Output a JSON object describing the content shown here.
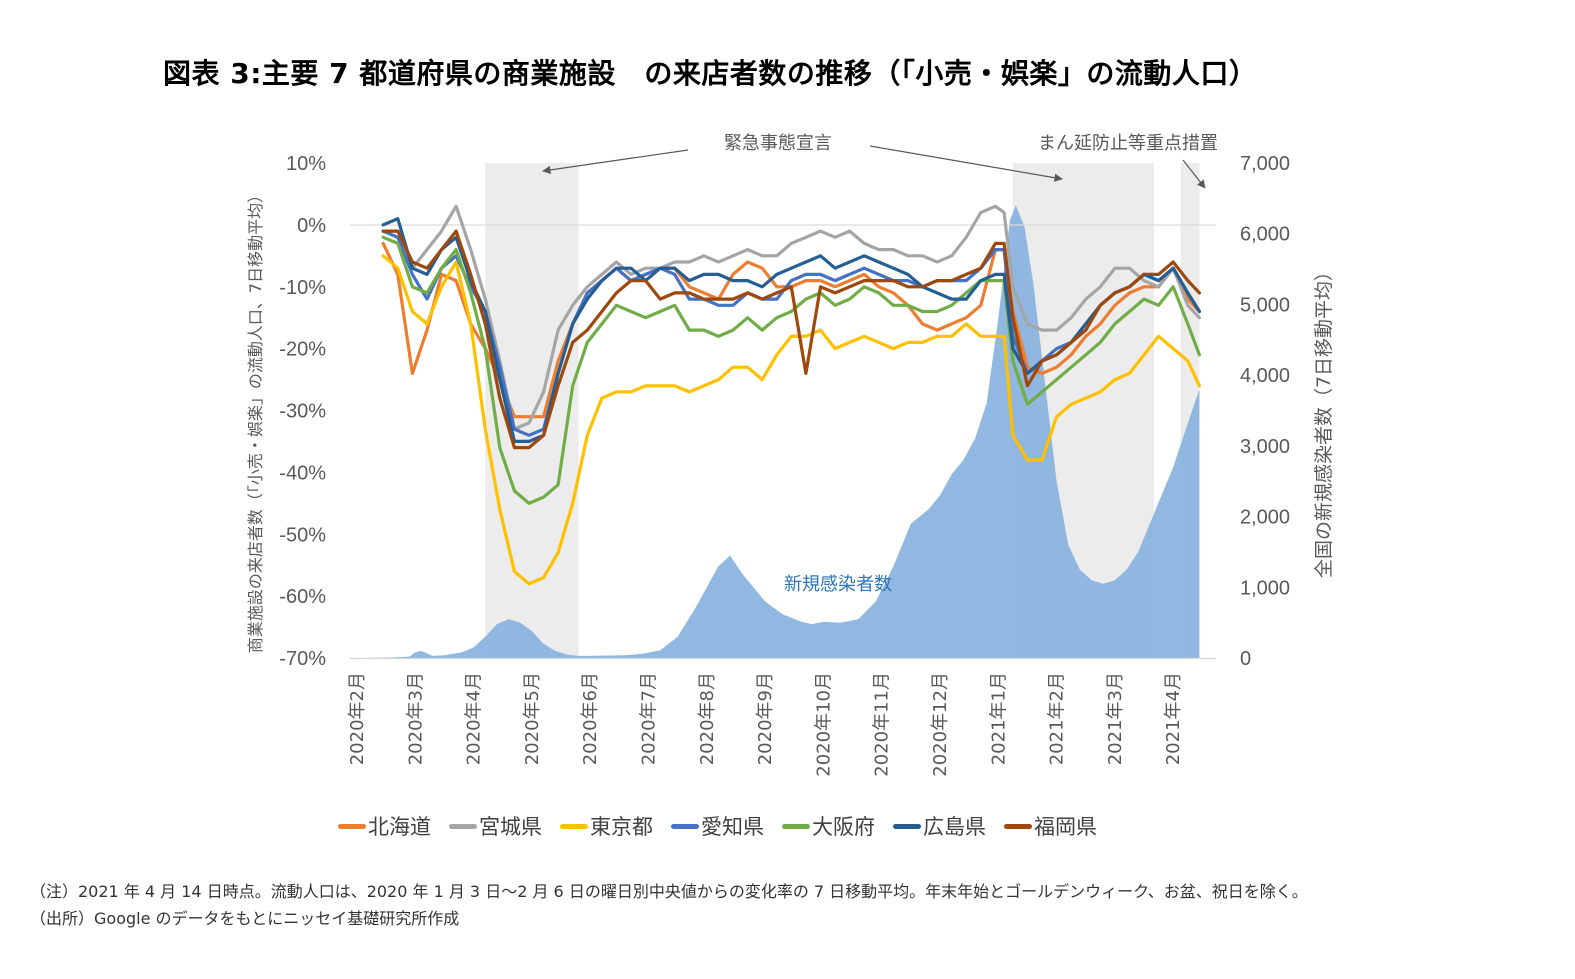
{
  "title": "図表 3:主要 7 都道府県の商業施設　の来店者数の推移（「小売・娯楽」の流動人口）",
  "notes": {
    "note": "（注）2021 年 4 月 14 日時点。流動人口は、2020 年 1 月 3 日～2 月 6 日の曜日別中央値からの変化率の 7 日移動平均。年末年始とゴールデンウィーク、お盆、祝日を除く。",
    "source": "（出所）Google のデータをもとにニッセイ基礎研究所作成"
  },
  "colors": {
    "hokkaido": "#ed7d31",
    "miyagi": "#a5a5a5",
    "tokyo": "#ffc000",
    "aichi": "#4472c4",
    "osaka": "#70ad47",
    "hiroshima": "#255e91",
    "fukuoka": "#9e480e",
    "infections": "#8bb4df",
    "shade": "#ececec",
    "grid": "#d9d9d9"
  },
  "chart_data": {
    "type": "line",
    "title": "図表 3:主要 7 都道府県の商業施設　の来店者数の推移（「小売・娯楽」の流動人口）",
    "ylabel": "商業施設の来店者数（「小売・娯楽」の流動人口、7日移動平均）",
    "y2label": "全国の新規感染者数（7日移動平均）",
    "ylim": [
      -70,
      10
    ],
    "y2lim": [
      0,
      7000
    ],
    "yticks": [
      "10%",
      "0%",
      "-10%",
      "-20%",
      "-30%",
      "-40%",
      "-50%",
      "-60%",
      "-70%"
    ],
    "y2ticks": [
      "7,000",
      "6,000",
      "5,000",
      "4,000",
      "3,000",
      "2,000",
      "1,000",
      "0"
    ],
    "xticks": [
      "2020年2月",
      "2020年3月",
      "2020年4月",
      "2020年5月",
      "2020年6月",
      "2020年7月",
      "2020年8月",
      "2020年9月",
      "2020年10月",
      "2020年11月",
      "2020年12月",
      "2021年1月",
      "2021年2月",
      "2021年3月",
      "2021年4月"
    ],
    "x_unit": "months since 2020-02-01",
    "xlim": [
      0,
      14.45
    ],
    "grid": "y at 0% only",
    "legend": "bottom",
    "annotations": [
      {
        "text": "緊急事態宣言",
        "targets": "2020-04-07〜2020-05-25, 2021-01-08〜2021-03-21"
      },
      {
        "text": "まん延防止等重点措置",
        "targets": "2021-04-05〜"
      },
      {
        "text": "新規感染者数",
        "series": "infections"
      }
    ],
    "shaded_periods": [
      [
        2.2,
        3.8
      ],
      [
        11.25,
        13.67
      ],
      [
        14.13,
        14.45
      ]
    ],
    "x": [
      0.45,
      0.7,
      0.95,
      1.2,
      1.45,
      1.7,
      1.95,
      2.2,
      2.45,
      2.7,
      2.95,
      3.2,
      3.45,
      3.7,
      3.95,
      4.2,
      4.45,
      4.7,
      4.95,
      5.2,
      5.45,
      5.7,
      5.95,
      6.2,
      6.45,
      6.7,
      6.95,
      7.2,
      7.45,
      7.7,
      7.95,
      8.2,
      8.45,
      8.7,
      8.95,
      9.2,
      9.45,
      9.7,
      9.95,
      10.2,
      10.45,
      10.7,
      10.95,
      11.1,
      11.25,
      11.5,
      11.75,
      12.0,
      12.25,
      12.5,
      12.75,
      13.0,
      13.25,
      13.5,
      13.75,
      14.0,
      14.25,
      14.45
    ],
    "series": [
      {
        "name": "北海道",
        "key": "hokkaido",
        "values": [
          -3,
          -8,
          -24,
          -17,
          -8,
          -9,
          -16,
          -20,
          -25,
          -31,
          -31,
          -31,
          -22,
          -16,
          -11,
          -9,
          -7,
          -9,
          -8,
          -7,
          -7,
          -10,
          -11,
          -12,
          -8,
          -6,
          -7,
          -10,
          -10,
          -9,
          -9,
          -10,
          -9,
          -8,
          -10,
          -11,
          -13,
          -16,
          -17,
          -16,
          -15,
          -13,
          -4,
          -4,
          -14,
          -23,
          -24,
          -23,
          -21,
          -18,
          -16,
          -13,
          -11,
          -10,
          -10,
          -7,
          -12,
          -14
        ]
      },
      {
        "name": "宮城県",
        "key": "miyagi",
        "values": [
          -1,
          -1,
          -7,
          -4,
          -1,
          3,
          -4,
          -12,
          -22,
          -33,
          -32,
          -27,
          -17,
          -13,
          -10,
          -8,
          -6,
          -8,
          -7,
          -7,
          -6,
          -6,
          -5,
          -6,
          -5,
          -4,
          -5,
          -5,
          -3,
          -2,
          -1,
          -2,
          -1,
          -3,
          -4,
          -4,
          -5,
          -5,
          -6,
          -5,
          -2,
          2,
          3,
          2,
          -10,
          -16,
          -17,
          -17,
          -15,
          -12,
          -10,
          -7,
          -7,
          -9,
          -10,
          -7,
          -13,
          -15
        ]
      },
      {
        "name": "東京都",
        "key": "tokyo",
        "values": [
          -5,
          -7,
          -14,
          -16,
          -10,
          -6,
          -16,
          -33,
          -46,
          -56,
          -58,
          -57,
          -53,
          -45,
          -34,
          -28,
          -27,
          -27,
          -26,
          -26,
          -26,
          -27,
          -26,
          -25,
          -23,
          -23,
          -25,
          -21,
          -18,
          -18,
          -17,
          -20,
          -19,
          -18,
          -19,
          -20,
          -19,
          -19,
          -18,
          -18,
          -16,
          -18,
          -18,
          -18,
          -34,
          -38,
          -38,
          -31,
          -29,
          -28,
          -27,
          -25,
          -24,
          -21,
          -18,
          -20,
          -22,
          -26
        ]
      },
      {
        "name": "愛知県",
        "key": "aichi",
        "values": [
          -1,
          -2,
          -8,
          -12,
          -7,
          -5,
          -10,
          -14,
          -23,
          -33,
          -34,
          -33,
          -24,
          -16,
          -11,
          -9,
          -7,
          -9,
          -8,
          -7,
          -8,
          -12,
          -12,
          -13,
          -13,
          -11,
          -12,
          -12,
          -9,
          -8,
          -8,
          -9,
          -8,
          -7,
          -8,
          -9,
          -9,
          -10,
          -9,
          -9,
          -9,
          -7,
          -4,
          -4,
          -18,
          -24,
          -22,
          -20,
          -19,
          -16,
          -13,
          -11,
          -10,
          -8,
          -9,
          -7,
          -11,
          -14
        ]
      },
      {
        "name": "大阪府",
        "key": "osaka",
        "values": [
          -2,
          -3,
          -10,
          -11,
          -7,
          -4,
          -11,
          -20,
          -36,
          -43,
          -45,
          -44,
          -42,
          -26,
          -19,
          -16,
          -13,
          -14,
          -15,
          -14,
          -13,
          -17,
          -17,
          -18,
          -17,
          -15,
          -17,
          -15,
          -14,
          -12,
          -11,
          -13,
          -12,
          -10,
          -11,
          -13,
          -13,
          -14,
          -14,
          -13,
          -11,
          -9,
          -9,
          -9,
          -22,
          -29,
          -27,
          -25,
          -23,
          -21,
          -19,
          -16,
          -14,
          -12,
          -13,
          -10,
          -16,
          -21
        ]
      },
      {
        "name": "広島県",
        "key": "hiroshima",
        "values": [
          0,
          1,
          -7,
          -8,
          -4,
          -2,
          -9,
          -14,
          -25,
          -35,
          -35,
          -34,
          -24,
          -16,
          -12,
          -9,
          -7,
          -7,
          -9,
          -7,
          -7,
          -9,
          -8,
          -8,
          -9,
          -9,
          -10,
          -8,
          -7,
          -6,
          -5,
          -7,
          -6,
          -5,
          -6,
          -7,
          -8,
          -10,
          -11,
          -12,
          -12,
          -9,
          -8,
          -8,
          -20,
          -24,
          -22,
          -21,
          -19,
          -16,
          -13,
          -11,
          -10,
          -8,
          -9,
          -7,
          -11,
          -14
        ]
      },
      {
        "name": "福岡県",
        "key": "fukuoka",
        "values": [
          -1,
          -1,
          -6,
          -7,
          -4,
          -1,
          -8,
          -16,
          -28,
          -36,
          -36,
          -34,
          -26,
          -19,
          -17,
          -14,
          -11,
          -9,
          -9,
          -12,
          -11,
          -11,
          -12,
          -12,
          -12,
          -11,
          -12,
          -11,
          -10,
          -24,
          -10,
          -11,
          -10,
          -9,
          -9,
          -9,
          -10,
          -10,
          -9,
          -9,
          -8,
          -7,
          -3,
          -3,
          -15,
          -26,
          -22,
          -21,
          -19,
          -17,
          -13,
          -11,
          -10,
          -8,
          -8,
          -6,
          -9,
          -11
        ]
      }
    ],
    "infections": {
      "name": "新規感染者数",
      "x": [
        0.0,
        0.5,
        0.9,
        1.0,
        1.1,
        1.3,
        1.5,
        1.8,
        2.0,
        2.2,
        2.4,
        2.6,
        2.8,
        3.0,
        3.2,
        3.4,
        3.6,
        3.8,
        4.0,
        4.3,
        4.6,
        4.9,
        5.2,
        5.5,
        5.8,
        6.0,
        6.2,
        6.4,
        6.6,
        6.8,
        7.0,
        7.3,
        7.6,
        7.8,
        8.0,
        8.3,
        8.6,
        8.9,
        9.2,
        9.5,
        9.8,
        10.0,
        10.2,
        10.4,
        10.6,
        10.8,
        11.0,
        11.1,
        11.2,
        11.3,
        11.45,
        11.6,
        11.8,
        12.0,
        12.2,
        12.4,
        12.6,
        12.8,
        13.0,
        13.2,
        13.4,
        13.6,
        13.8,
        14.0,
        14.2,
        14.45
      ],
      "values": [
        0,
        5,
        20,
        80,
        100,
        30,
        40,
        80,
        150,
        300,
        480,
        550,
        500,
        380,
        200,
        100,
        50,
        30,
        30,
        35,
        40,
        60,
        110,
        300,
        700,
        1000,
        1300,
        1450,
        1200,
        1000,
        800,
        620,
        520,
        480,
        510,
        500,
        550,
        800,
        1300,
        1900,
        2100,
        2300,
        2600,
        2800,
        3100,
        3600,
        4800,
        5500,
        6200,
        6400,
        6100,
        5300,
        3900,
        2500,
        1600,
        1250,
        1100,
        1050,
        1100,
        1250,
        1500,
        1900,
        2300,
        2700,
        3200,
        3800
      ]
    }
  }
}
